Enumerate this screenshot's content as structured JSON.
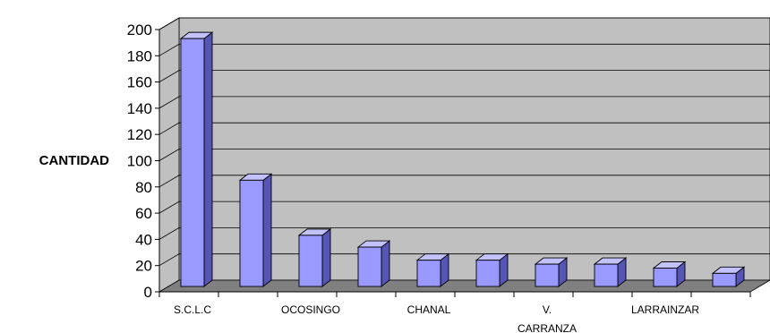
{
  "chart_data": {
    "type": "bar",
    "title": "",
    "xlabel": "",
    "ylabel": "CANTIDAD",
    "ylim": [
      0,
      200
    ],
    "yticks": [
      0,
      20,
      40,
      60,
      80,
      100,
      120,
      140,
      160,
      180,
      200
    ],
    "categories": [
      "S.C.L.C",
      "",
      "OCOSINGO",
      "",
      "CHANAL",
      "",
      "V. CARRANZA",
      "",
      "LARRAINZAR",
      ""
    ],
    "category_label_lines": [
      [
        "S.C.L.C"
      ],
      [],
      [
        "OCOSINGO"
      ],
      [],
      [
        "CHANAL"
      ],
      [],
      [
        "V.",
        "CARRANZA"
      ],
      [],
      [
        "LARRAINZAR"
      ],
      []
    ],
    "values": [
      189,
      81,
      39,
      30,
      20,
      20,
      17,
      17,
      14,
      10
    ],
    "grid": true,
    "legend": "none",
    "colors": {
      "bar_front": "#9999ff",
      "bar_side": "#5555b8",
      "bar_top": "#c2c2ff",
      "wall": "#c0c0c0",
      "floor": "#808080",
      "gridline": "#000000"
    }
  }
}
